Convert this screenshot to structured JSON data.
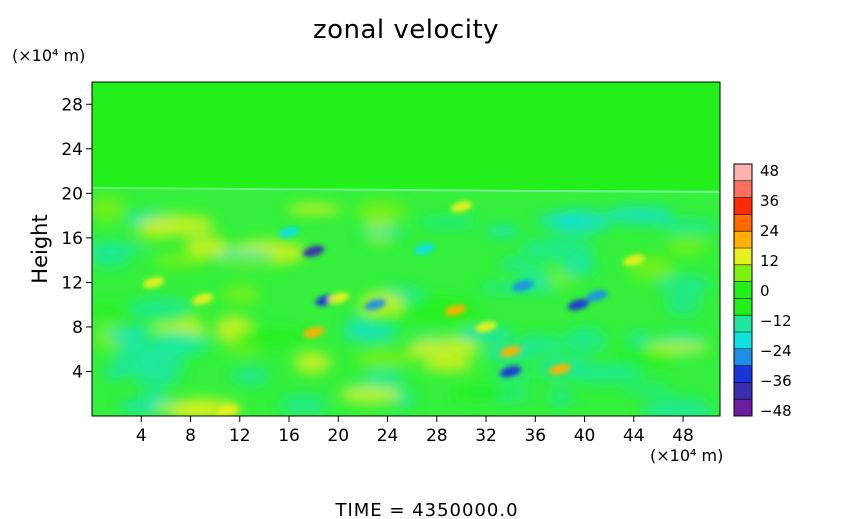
{
  "chart_data": {
    "type": "heatmap",
    "title": "zonal velocity",
    "ylabel": "Height",
    "y_unit": "(×10⁴ m)",
    "x_unit": "(×10⁴ m)",
    "x_ticks": [
      4,
      8,
      12,
      16,
      20,
      24,
      28,
      32,
      36,
      40,
      44,
      48
    ],
    "y_ticks": [
      4,
      8,
      12,
      16,
      20,
      24,
      28
    ],
    "xlim": [
      0,
      51
    ],
    "ylim": [
      0,
      30
    ],
    "colorbar": {
      "ticks": [
        "48",
        "36",
        "24",
        "12",
        "0",
        "−12",
        "−24",
        "−36",
        "−48"
      ],
      "range": [
        -48,
        48
      ],
      "colors": [
        "#6a1fa0",
        "#3b2cb0",
        "#1a34d8",
        "#1e8ee8",
        "#10e0e0",
        "#1ee8a0",
        "#22f01a",
        "#22f01a",
        "#7ef010",
        "#e8f01e",
        "#ffb000",
        "#ff6a00",
        "#ff2a00",
        "#ff7060",
        "#ffb0b0"
      ]
    },
    "annotation": "TIME = 4350000.0",
    "features": [
      {
        "x": 18.0,
        "y": 14.8,
        "v": -38
      },
      {
        "x": 19.0,
        "y": 10.4,
        "v": -30
      },
      {
        "x": 23.0,
        "y": 10.0,
        "v": -28
      },
      {
        "x": 39.5,
        "y": 10.0,
        "v": -33
      },
      {
        "x": 41.0,
        "y": 10.8,
        "v": -28
      },
      {
        "x": 35.0,
        "y": 11.7,
        "v": -24
      },
      {
        "x": 34.0,
        "y": 4.0,
        "v": -30
      },
      {
        "x": 27.0,
        "y": 15.0,
        "v": -20
      },
      {
        "x": 16.0,
        "y": 16.5,
        "v": -18
      },
      {
        "x": 29.5,
        "y": 9.5,
        "v": 20
      },
      {
        "x": 30.0,
        "y": 18.8,
        "v": 14
      },
      {
        "x": 18.0,
        "y": 7.5,
        "v": 18
      },
      {
        "x": 34.0,
        "y": 5.8,
        "v": 18
      },
      {
        "x": 38.0,
        "y": 4.2,
        "v": 20
      },
      {
        "x": 20.0,
        "y": 10.6,
        "v": 14
      },
      {
        "x": 9.0,
        "y": 10.5,
        "v": 12
      },
      {
        "x": 5.0,
        "y": 12.0,
        "v": 12
      },
      {
        "x": 32.0,
        "y": 8.0,
        "v": 10
      },
      {
        "x": 11.0,
        "y": 0.5,
        "v": 12
      },
      {
        "x": 44.0,
        "y": 14.0,
        "v": 10
      }
    ]
  }
}
